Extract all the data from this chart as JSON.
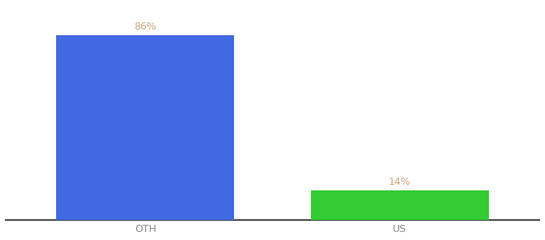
{
  "categories": [
    "OTH",
    "US"
  ],
  "values": [
    86,
    14
  ],
  "bar_colors": [
    "#4169e1",
    "#33cc33"
  ],
  "label_colors": [
    "#c8a882",
    "#c8a882"
  ],
  "label_texts": [
    "86%",
    "14%"
  ],
  "ylabel": "",
  "ylim": [
    0,
    100
  ],
  "background_color": "#ffffff",
  "label_fontsize": 9,
  "tick_fontsize": 9,
  "bar_width": 0.7,
  "x_positions": [
    0,
    1
  ],
  "figsize": [
    6.8,
    3.0
  ],
  "dpi": 100,
  "tick_color": "#888888",
  "spine_color": "#222222"
}
